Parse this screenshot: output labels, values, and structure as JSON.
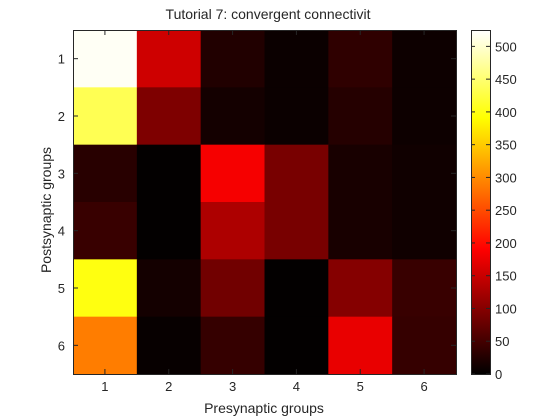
{
  "chart_data": {
    "type": "heatmap",
    "title": "Tutorial 7: convergent connectivit",
    "xlabel": "Presynaptic groups",
    "ylabel": "Postsynaptic groups",
    "x_categories": [
      "1",
      "2",
      "3",
      "4",
      "5",
      "6"
    ],
    "y_categories": [
      "1",
      "2",
      "3",
      "4",
      "5",
      "6"
    ],
    "values": [
      [
        520,
        155,
        25,
        8,
        35,
        10
      ],
      [
        435,
        95,
        15,
        8,
        28,
        10
      ],
      [
        30,
        2,
        185,
        90,
        18,
        12
      ],
      [
        42,
        2,
        130,
        90,
        18,
        12
      ],
      [
        400,
        15,
        85,
        2,
        100,
        42
      ],
      [
        290,
        5,
        40,
        2,
        175,
        40
      ]
    ],
    "colormap": "hot",
    "clim": [
      0,
      525
    ],
    "colorbar": {
      "ticks": [
        0,
        50,
        100,
        150,
        200,
        250,
        300,
        350,
        400,
        450,
        500
      ],
      "tick_labels": [
        "0",
        "50",
        "100",
        "150",
        "200",
        "250",
        "300",
        "350",
        "400",
        "450",
        "500"
      ]
    }
  }
}
